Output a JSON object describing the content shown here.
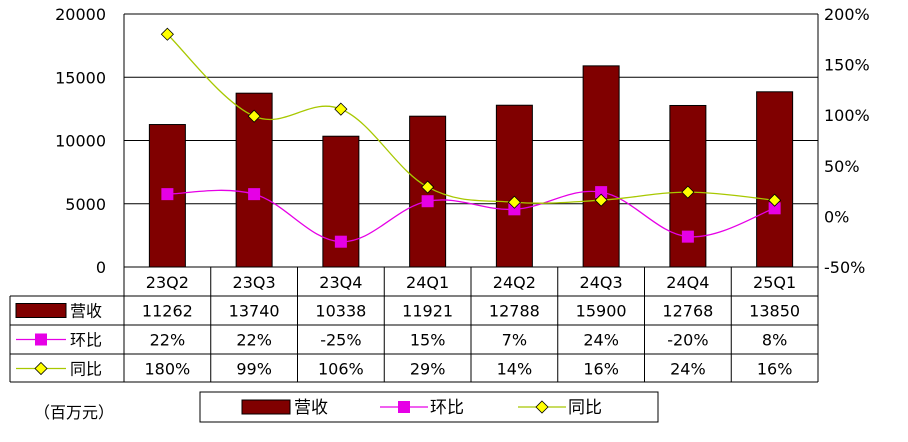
{
  "chart_data": {
    "type": "bar",
    "categories": [
      "23Q2",
      "23Q3",
      "23Q4",
      "24Q1",
      "24Q2",
      "24Q3",
      "24Q4",
      "25Q1"
    ],
    "series": [
      {
        "name": "营收",
        "type": "bar",
        "axis": "left",
        "values": [
          11262,
          13740,
          10338,
          11921,
          12788,
          15900,
          12768,
          13850
        ],
        "labels": [
          "11262",
          "13740",
          "10338",
          "11921",
          "12788",
          "15900",
          "12768",
          "13850"
        ],
        "color": "#800000"
      },
      {
        "name": "环比",
        "type": "line",
        "axis": "right",
        "values": [
          22,
          22,
          -25,
          15,
          7,
          24,
          -20,
          8
        ],
        "labels": [
          "22%",
          "22%",
          "-25%",
          "15%",
          "7%",
          "24%",
          "-20%",
          "8%"
        ],
        "color": "#e600e6",
        "marker": "square"
      },
      {
        "name": "同比",
        "type": "line",
        "axis": "right",
        "values": [
          180,
          99,
          106,
          29,
          14,
          16,
          24,
          16
        ],
        "labels": [
          "180%",
          "99%",
          "106%",
          "29%",
          "14%",
          "16%",
          "24%",
          "16%"
        ],
        "color": "#a8c800",
        "marker_fill": "#ffff00",
        "marker": "diamond"
      }
    ],
    "y_left": {
      "min": 0,
      "max": 20000,
      "ticks": [
        "0",
        "5000",
        "10000",
        "15000",
        "20000"
      ]
    },
    "y_right": {
      "min": -50,
      "max": 200,
      "ticks": [
        "-50%",
        "0%",
        "50%",
        "100%",
        "150%",
        "200%"
      ]
    },
    "unit_note": "（百万元）",
    "grid": true,
    "legend_position": "bottom"
  }
}
